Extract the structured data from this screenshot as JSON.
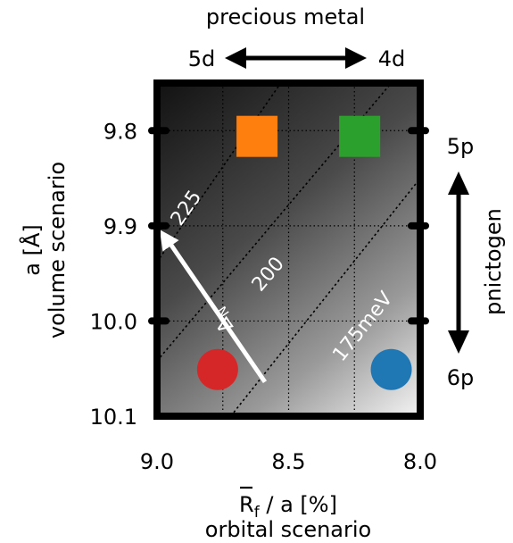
{
  "chart_data": {
    "type": "heatmap",
    "title": "",
    "xlabel": {
      "prefix": "R",
      "subscript": "f",
      "rest": " / a [%]",
      "second_line": "orbital scenario"
    },
    "ylabel": {
      "line1": "a [Å]",
      "line2": "volume scenario"
    },
    "xlim": [
      9.0,
      8.0
    ],
    "ylim": [
      9.75,
      10.1
    ],
    "x_ticks": [
      {
        "value": 9.0,
        "label": "9.0"
      },
      {
        "value": 8.5,
        "label": "8.5"
      },
      {
        "value": 8.0,
        "label": "8.0"
      }
    ],
    "y_ticks": [
      {
        "value": 9.8,
        "label": "9.8"
      },
      {
        "value": 9.9,
        "label": "9.9"
      },
      {
        "value": 10.0,
        "label": "10.0"
      },
      {
        "value": 10.1,
        "label": "10.1"
      }
    ],
    "grid": true,
    "background": "grayscale gradient: dark at top-left, light at bottom-right",
    "contours": [
      {
        "label": "225",
        "x": [
          9.0,
          8.53
        ],
        "y": [
          9.938,
          9.75
        ]
      },
      {
        "label": "200",
        "x": [
          9.0,
          8.11
        ],
        "y": [
          10.042,
          9.75
        ]
      },
      {
        "label": "175meV",
        "x": [
          8.72,
          8.0
        ],
        "y": [
          10.1,
          9.85
        ]
      }
    ],
    "arrow": {
      "label_main": "Δ",
      "label_sub": "N",
      "from": [
        8.59,
        10.064
      ],
      "to": [
        8.99,
        9.904
      ],
      "color": "#ffffff"
    },
    "markers": [
      {
        "shape": "square",
        "color": "#ff7f0e",
        "x": 8.62,
        "y": 9.806
      },
      {
        "shape": "square",
        "color": "#2ca02c",
        "x": 8.23,
        "y": 9.806
      },
      {
        "shape": "circle",
        "color": "#d62728",
        "x": 8.77,
        "y": 10.051
      },
      {
        "shape": "circle",
        "color": "#1f77b4",
        "x": 8.11,
        "y": 10.051
      }
    ],
    "top_annotation": {
      "title": "precious metal",
      "left": "5d",
      "right": "4d"
    },
    "right_annotation": {
      "title": "pnictogen",
      "top": "5p",
      "bottom": "6p"
    }
  }
}
